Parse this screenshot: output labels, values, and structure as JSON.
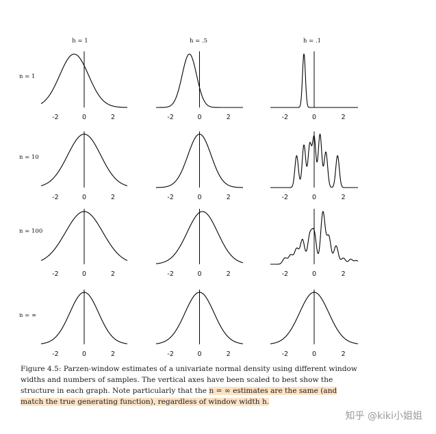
{
  "figure": {
    "column_labels": [
      "h = 1",
      "h = .5",
      "h = .1"
    ],
    "row_labels": [
      "n = 1",
      "n = 10",
      "n = 100",
      "n = ∞"
    ],
    "tick_labels": [
      "-2",
      "0",
      "2"
    ]
  },
  "chart_data": {
    "type": "line",
    "grid": false,
    "xlim": [
      -3,
      3
    ],
    "x_ticks": [
      -2,
      0,
      2
    ],
    "columns": [
      "h = 1",
      "h = .5",
      "h = .1"
    ],
    "rows": [
      "n = 1",
      "n = 10",
      "n = 100",
      "n = ∞"
    ],
    "curves": [
      [
        {
          "peaks": [
            [
              -0.7,
              1.0,
              1.0
            ]
          ]
        },
        {
          "peaks": [
            [
              -0.7,
              1.0,
              0.5
            ]
          ]
        },
        {
          "peaks": [
            [
              -0.7,
              1.0,
              0.1
            ]
          ]
        }
      ],
      [
        {
          "peaks": [
            [
              0.0,
              1.0,
              1.15
            ]
          ]
        },
        {
          "peaks": [
            [
              0.0,
              1.0,
              0.8
            ]
          ]
        },
        {
          "peaks": [
            [
              -1.2,
              0.45,
              0.12
            ],
            [
              -0.7,
              0.6,
              0.12
            ],
            [
              -0.3,
              0.6,
              0.12
            ],
            [
              0.0,
              0.7,
              0.12
            ],
            [
              0.4,
              0.75,
              0.12
            ],
            [
              0.8,
              0.5,
              0.12
            ],
            [
              1.6,
              0.45,
              0.12
            ]
          ]
        }
      ],
      [
        {
          "peaks": [
            [
              0.0,
              1.0,
              1.3
            ]
          ]
        },
        {
          "peaks": [
            [
              0.2,
              1.0,
              1.05
            ]
          ]
        },
        {
          "peaks": [
            [
              -2.0,
              0.1,
              0.15
            ],
            [
              -1.6,
              0.15,
              0.15
            ],
            [
              -1.2,
              0.25,
              0.15
            ],
            [
              -0.8,
              0.4,
              0.15
            ],
            [
              -0.3,
              0.45,
              0.15
            ],
            [
              0.0,
              0.5,
              0.15
            ],
            [
              0.6,
              0.85,
              0.15
            ],
            [
              1.0,
              0.45,
              0.15
            ],
            [
              1.5,
              0.3,
              0.15
            ],
            [
              2.0,
              0.1,
              0.15
            ],
            [
              2.5,
              0.08,
              0.15
            ],
            [
              2.9,
              0.06,
              0.15
            ]
          ]
        }
      ],
      [
        {
          "peaks": [
            [
              0.0,
              1.0,
              1.0
            ]
          ]
        },
        {
          "peaks": [
            [
              0.0,
              1.0,
              1.0
            ]
          ]
        },
        {
          "peaks": [
            [
              0.0,
              1.0,
              1.0
            ]
          ]
        }
      ]
    ]
  },
  "caption": {
    "part1": "Figure 4.5: Parzen-window estimates of a univariate normal density using different window widths and numbers of samples. The vertical axes have been scaled to best show the structure in each graph. Note particularly that the ",
    "highlight1": "n = ∞ estimates are the same (and match the true generating function), regardless of window width h.",
    "part2": ""
  },
  "watermark": "知乎 @kiki小姐姐"
}
